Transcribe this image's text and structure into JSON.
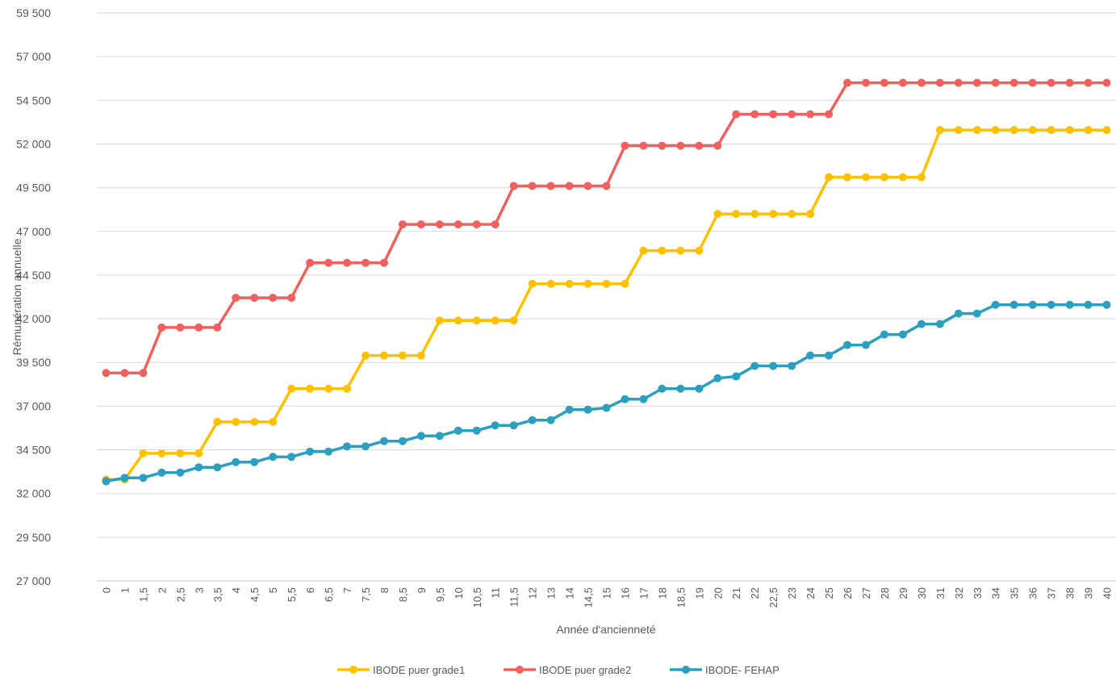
{
  "chart_data": {
    "type": "line",
    "xlabel": "Année d'ancienneté",
    "ylabel": "Rémunération annuelle",
    "ylim": [
      27000,
      59500
    ],
    "y_ticks": [
      27000,
      29500,
      32000,
      34500,
      37000,
      39500,
      42000,
      44500,
      47000,
      49500,
      52000,
      54500,
      57000,
      59500
    ],
    "y_tick_labels": [
      "27 000",
      "29 500",
      "32 000",
      "34 500",
      "37 000",
      "39 500",
      "42 000",
      "44 500",
      "47 000",
      "49 500",
      "52 000",
      "54 500",
      "57 000",
      "59 500"
    ],
    "grid": true,
    "legend_position": "bottom",
    "categories": [
      "0",
      "1",
      "1,5",
      "2",
      "2,5",
      "3",
      "3,5",
      "4",
      "4,5",
      "5",
      "5,5",
      "6",
      "6,5",
      "7",
      "7,5",
      "8",
      "8,5",
      "9",
      "9,5",
      "10",
      "10,5",
      "11",
      "11,5",
      "12",
      "13",
      "14",
      "14,5",
      "15",
      "16",
      "17",
      "18",
      "18,5",
      "19",
      "20",
      "21",
      "22",
      "22,5",
      "23",
      "24",
      "25",
      "26",
      "27",
      "28",
      "29",
      "30",
      "31",
      "32",
      "33",
      "34",
      "35",
      "36",
      "37",
      "38",
      "39",
      "40"
    ],
    "series": [
      {
        "name": "IBODE puer grade1",
        "color": "#ffc000",
        "values": [
          32800,
          32800,
          34300,
          34300,
          34300,
          34300,
          36100,
          36100,
          36100,
          36100,
          38000,
          38000,
          38000,
          38000,
          39900,
          39900,
          39900,
          39900,
          41900,
          41900,
          41900,
          41900,
          41900,
          44000,
          44000,
          44000,
          44000,
          44000,
          44000,
          45900,
          45900,
          45900,
          45900,
          48000,
          48000,
          48000,
          48000,
          48000,
          48000,
          50100,
          50100,
          50100,
          50100,
          50100,
          50100,
          52800,
          52800,
          52800,
          52800,
          52800,
          52800,
          52800,
          52800,
          52800,
          52800
        ]
      },
      {
        "name": "IBODE puer grade2",
        "color": "#f0605d",
        "values": [
          38900,
          38900,
          38900,
          41500,
          41500,
          41500,
          41500,
          43200,
          43200,
          43200,
          43200,
          45200,
          45200,
          45200,
          45200,
          45200,
          47400,
          47400,
          47400,
          47400,
          47400,
          47400,
          49600,
          49600,
          49600,
          49600,
          49600,
          49600,
          51900,
          51900,
          51900,
          51900,
          51900,
          51900,
          53700,
          53700,
          53700,
          53700,
          53700,
          53700,
          55500,
          55500,
          55500,
          55500,
          55500,
          55500,
          55500,
          55500,
          55500,
          55500,
          55500,
          55500,
          55500,
          55500,
          55500
        ]
      },
      {
        "name": "IBODE- FEHAP",
        "color": "#2a9fc0",
        "values": [
          32700,
          32900,
          32900,
          33200,
          33200,
          33500,
          33500,
          33800,
          33800,
          34100,
          34100,
          34400,
          34400,
          34700,
          34700,
          35000,
          35000,
          35300,
          35300,
          35600,
          35600,
          35900,
          35900,
          36200,
          36200,
          36800,
          36800,
          36900,
          37400,
          37400,
          38000,
          38000,
          38000,
          38600,
          38700,
          39300,
          39300,
          39300,
          39900,
          39900,
          40500,
          40500,
          41100,
          41100,
          41700,
          41700,
          42300,
          42300,
          42800,
          42800,
          42800,
          42800,
          42800,
          42800,
          42800
        ]
      }
    ]
  }
}
